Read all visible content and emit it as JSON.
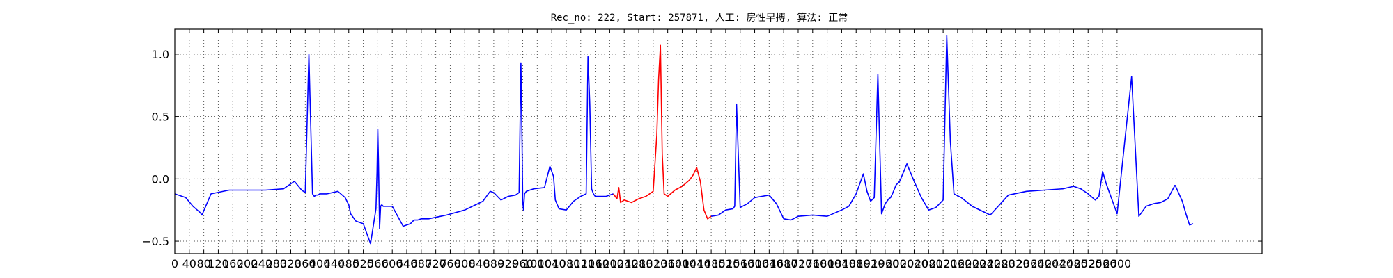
{
  "chart_data": {
    "type": "line",
    "title": "Rec_no: 222, Start: 257871, 人工: 房性早搏, 算法: 正常",
    "xlabel": "",
    "ylabel": "",
    "xlim": [
      0,
      3000
    ],
    "ylim": [
      -0.6,
      1.2
    ],
    "yticks": [
      -0.5,
      0.0,
      0.5,
      1.0
    ],
    "ytick_labels": [
      "−0.5",
      "0.0",
      "0.5",
      "1.0"
    ],
    "xticks": [
      0,
      40,
      80,
      120,
      160,
      200,
      240,
      280,
      320,
      360,
      400,
      440,
      480,
      520,
      560,
      600,
      640,
      680,
      720,
      760,
      800,
      840,
      880,
      920,
      960,
      1000,
      1040,
      1080,
      1120,
      1160,
      1200,
      1240,
      1280,
      1320,
      1360,
      1400,
      1440,
      1480,
      1520,
      1560,
      1600,
      1640,
      1680,
      1720,
      1760,
      1800,
      1840,
      1880,
      1920,
      1960,
      2000,
      2040,
      2080,
      2120,
      2160,
      2200,
      2240,
      2280,
      2320,
      2360,
      2400,
      2440,
      2480,
      2520,
      2560,
      2600
    ],
    "grid": true,
    "series": [
      {
        "color": "#0000ff",
        "x": [
          0,
          30,
          50,
          70,
          75,
          100,
          150,
          200,
          250,
          300,
          330,
          350,
          360,
          370,
          380,
          385,
          390,
          395,
          400,
          420,
          450,
          470,
          480,
          485,
          490,
          495,
          500,
          520,
          540,
          555,
          558,
          560,
          562,
          565,
          568,
          570,
          572,
          575,
          580,
          600,
          630,
          650,
          660,
          670,
          680,
          700,
          750,
          800,
          850,
          870,
          880,
          890,
          900,
          920,
          940,
          950,
          955,
          958,
          960,
          962,
          965,
          970,
          990,
          1020,
          1035,
          1045,
          1050,
          1060,
          1080,
          1100,
          1120,
          1135,
          1140,
          1145,
          1150,
          1155,
          1160,
          1170,
          1190,
          1210
        ],
        "values": [
          -0.12,
          -0.15,
          -0.22,
          -0.27,
          -0.29,
          -0.12,
          -0.09,
          -0.09,
          -0.09,
          -0.08,
          -0.02,
          -0.09,
          -0.11,
          1.0,
          -0.12,
          -0.14,
          -0.13,
          -0.13,
          -0.12,
          -0.12,
          -0.1,
          -0.15,
          -0.21,
          -0.28,
          -0.3,
          -0.32,
          -0.34,
          -0.36,
          -0.52,
          -0.24,
          0.05,
          0.4,
          0.15,
          -0.4,
          -0.22,
          -0.21,
          -0.21,
          -0.22,
          -0.22,
          -0.22,
          -0.38,
          -0.36,
          -0.33,
          -0.33,
          -0.32,
          -0.32,
          -0.29,
          -0.25,
          -0.18,
          -0.1,
          -0.11,
          -0.14,
          -0.17,
          -0.14,
          -0.13,
          -0.11,
          0.93,
          0.3,
          -0.18,
          -0.25,
          -0.12,
          -0.1,
          -0.08,
          -0.07,
          0.1,
          0.02,
          -0.17,
          -0.24,
          -0.25,
          -0.18,
          -0.14,
          -0.12,
          0.98,
          0.6,
          -0.08,
          -0.12,
          -0.14,
          -0.14,
          -0.14,
          -0.12
        ]
      },
      {
        "color": "#ff0000",
        "x": [
          1210,
          1220,
          1225,
          1230,
          1240,
          1260,
          1280,
          1300,
          1320,
          1330,
          1335,
          1340,
          1345,
          1350,
          1360,
          1380,
          1400,
          1420,
          1430,
          1440,
          1450,
          1460,
          1470,
          1480
        ],
        "values": [
          -0.12,
          -0.16,
          -0.07,
          -0.19,
          -0.17,
          -0.19,
          -0.16,
          -0.14,
          -0.1,
          0.35,
          0.8,
          1.07,
          0.2,
          -0.12,
          -0.14,
          -0.09,
          -0.06,
          -0.01,
          0.03,
          0.09,
          -0.02,
          -0.25,
          -0.32,
          -0.3
        ]
      },
      {
        "color": "#0000ff",
        "x": [
          1480,
          1500,
          1520,
          1540,
          1545,
          1550,
          1560,
          1580,
          1600,
          1620,
          1640,
          1660,
          1680,
          1700,
          1720,
          1760,
          1800,
          1840,
          1860,
          1880,
          1900,
          1910,
          1920,
          1930,
          1940,
          1950,
          1960,
          1970,
          1975,
          1980,
          1990,
          2000,
          2020,
          2040,
          2060,
          2080,
          2100,
          2120,
          2130,
          2140,
          2150,
          2170,
          2200,
          2250,
          2300,
          2350,
          2400,
          2450,
          2480,
          2500,
          2520,
          2540,
          2550,
          2560,
          2570,
          2600,
          2640,
          2660,
          2680,
          2700,
          2720,
          2740,
          2760
        ],
        "values": [
          -0.3,
          -0.29,
          -0.25,
          -0.24,
          -0.22,
          0.6,
          -0.23,
          -0.2,
          -0.15,
          -0.14,
          -0.13,
          -0.2,
          -0.32,
          -0.33,
          -0.3,
          -0.29,
          -0.3,
          -0.25,
          -0.22,
          -0.12,
          0.04,
          -0.1,
          -0.18,
          -0.15,
          0.84,
          -0.28,
          -0.2,
          -0.16,
          -0.15,
          -0.12,
          -0.05,
          -0.02,
          0.12,
          -0.02,
          -0.15,
          -0.25,
          -0.23,
          -0.17,
          1.15,
          0.3,
          -0.12,
          -0.15,
          -0.22,
          -0.29,
          -0.13,
          -0.1,
          -0.09,
          -0.08,
          -0.06,
          -0.08,
          -0.12,
          -0.17,
          -0.14,
          0.06,
          -0.04,
          -0.28,
          0.82,
          -0.3,
          -0.22,
          -0.2,
          -0.19,
          -0.16,
          -0.05
        ]
      },
      {
        "color": "#0000ff",
        "x": [
          2760,
          2780,
          2790,
          2800,
          2810
        ],
        "values": [
          -0.05,
          -0.18,
          -0.28,
          -0.37,
          -0.36
        ]
      }
    ]
  }
}
